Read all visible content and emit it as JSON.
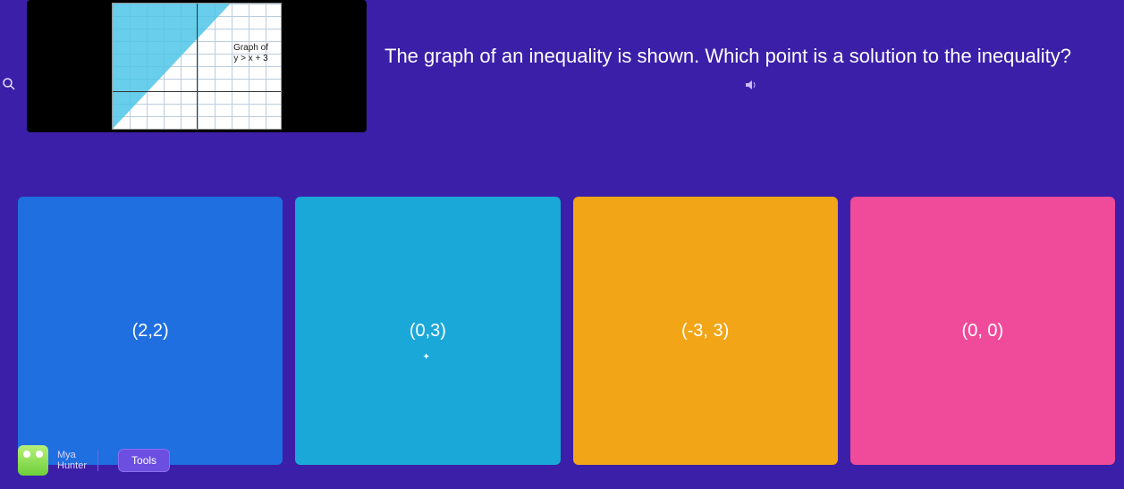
{
  "question": {
    "text": "The graph of an inequality is shown. Which point is a solution to the inequality?",
    "text_color": "#ffffff",
    "text_fontsize": 22
  },
  "graph_thumbnail": {
    "label_line1": "Graph of",
    "label_line2": "y > x + 3",
    "shaded_color": "#4ec6e8",
    "grid_color": "#bbccdd",
    "axis_color": "#333333",
    "bg_color": "#ffffff"
  },
  "answers": [
    {
      "label": "(2,2)",
      "bg": "#1f6fe0",
      "text_color": "#ffffff"
    },
    {
      "label": "(0,3)",
      "bg": "#1aa8d8",
      "text_color": "#ffffff",
      "has_cursor": true
    },
    {
      "label": "(-3, 3)",
      "bg": "#f2a516",
      "text_color": "#ffffff"
    },
    {
      "label": "(0, 0)",
      "bg": "#f04a9a",
      "text_color": "#ffffff"
    }
  ],
  "player": {
    "name_line1": "Mya",
    "name_line2": "Hunter"
  },
  "toolbar": {
    "tools_label": "Tools"
  },
  "icons": {
    "zoom": "search-icon",
    "audio": "audio-icon"
  },
  "colors": {
    "page_bg": "#3b1fa8",
    "thumb_wrap_bg": "#000000",
    "tools_btn_bg": "#6c4fe0"
  }
}
